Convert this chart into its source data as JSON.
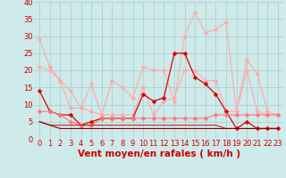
{
  "x": [
    0,
    1,
    2,
    3,
    4,
    5,
    6,
    7,
    8,
    9,
    10,
    11,
    12,
    13,
    14,
    15,
    16,
    17,
    18,
    19,
    20,
    21,
    22,
    23
  ],
  "series": [
    {
      "name": "rafales_max",
      "color": "#ffaaaa",
      "linewidth": 0.8,
      "marker": "D",
      "markersize": 2.5,
      "y": [
        29,
        21,
        17,
        14,
        9,
        16,
        7,
        17,
        15,
        12,
        21,
        20,
        20,
        11,
        30,
        37,
        31,
        32,
        34,
        8,
        20,
        8,
        7,
        7
      ]
    },
    {
      "name": "rafales_moy",
      "color": "#ffaaaa",
      "linewidth": 0.8,
      "marker": "D",
      "markersize": 2.5,
      "y": [
        21,
        20,
        17,
        9,
        9,
        8,
        7,
        7,
        7,
        7,
        15,
        7,
        11,
        12,
        20,
        20,
        17,
        17,
        8,
        8,
        23,
        19,
        8,
        7
      ]
    },
    {
      "name": "vent_max",
      "color": "#dd0000",
      "linewidth": 0.9,
      "marker": "D",
      "markersize": 2.5,
      "y": [
        14,
        8,
        7,
        7,
        4,
        5,
        6,
        6,
        6,
        6,
        13,
        11,
        12,
        25,
        25,
        18,
        16,
        13,
        8,
        3,
        5,
        3,
        3,
        3
      ]
    },
    {
      "name": "vent_moy1",
      "color": "#ff7777",
      "linewidth": 0.8,
      "marker": "D",
      "markersize": 2.5,
      "y": [
        8,
        8,
        7,
        5,
        4,
        4,
        6,
        6,
        6,
        6,
        6,
        6,
        6,
        6,
        6,
        6,
        6,
        7,
        7,
        7,
        7,
        7,
        7,
        7
      ]
    },
    {
      "name": "vent_moy2",
      "color": "#cc2222",
      "linewidth": 0.8,
      "marker": null,
      "markersize": 0,
      "y": [
        5,
        4,
        4,
        4,
        4,
        4,
        4,
        4,
        4,
        4,
        4,
        4,
        4,
        4,
        4,
        4,
        4,
        4,
        3,
        3,
        3,
        3,
        3,
        3
      ]
    },
    {
      "name": "vent_moy3",
      "color": "#880000",
      "linewidth": 0.8,
      "marker": null,
      "markersize": 0,
      "y": [
        5,
        4,
        3,
        3,
        3,
        3,
        3,
        3,
        3,
        3,
        3,
        3,
        3,
        3,
        3,
        3,
        3,
        3,
        3,
        3,
        3,
        3,
        3,
        3
      ]
    }
  ],
  "xlabel": "Vent moyen/en rafales ( km/h )",
  "ylim": [
    0,
    40
  ],
  "xlim": [
    -0.5,
    23.5
  ],
  "yticks": [
    0,
    5,
    10,
    15,
    20,
    25,
    30,
    35,
    40
  ],
  "xticks": [
    0,
    1,
    2,
    3,
    4,
    5,
    6,
    7,
    8,
    9,
    10,
    11,
    12,
    13,
    14,
    15,
    16,
    17,
    18,
    19,
    20,
    21,
    22,
    23
  ],
  "background_color": "#ceeaea",
  "grid_color": "#aacccc",
  "xlabel_color": "#cc0000",
  "xlabel_fontsize": 7.5,
  "tick_fontsize": 6,
  "tick_color": "#cc0000"
}
